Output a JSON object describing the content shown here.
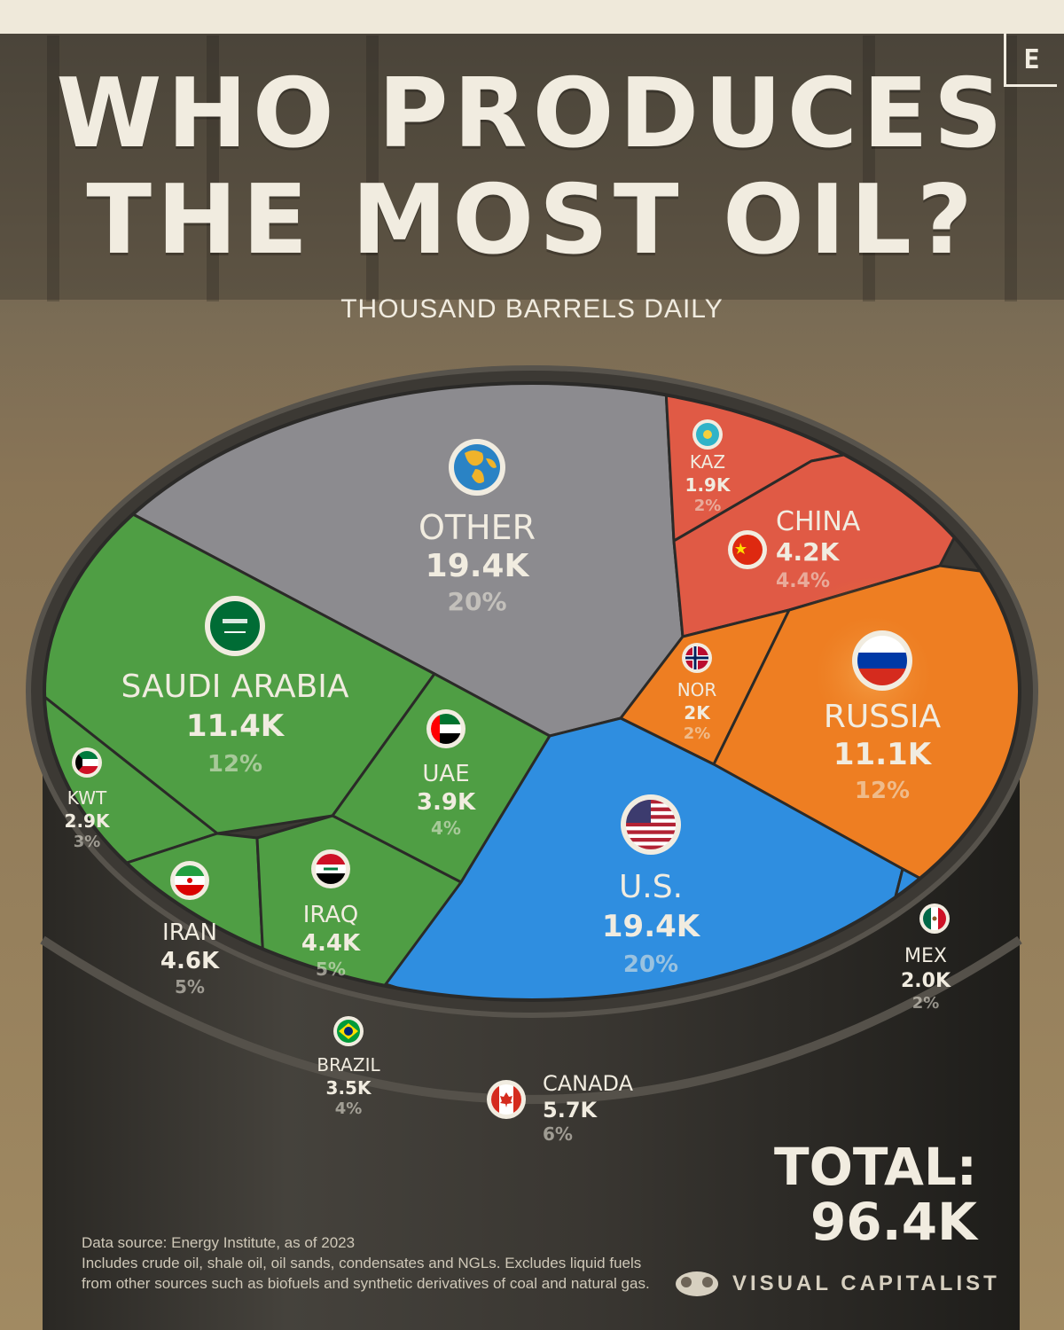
{
  "title_line1": "WHO PRODUCES",
  "title_line2": "THE MOST OIL?",
  "subtitle": "THOUSAND BARRELS DAILY",
  "logo_letter": "E",
  "total_label": "TOTAL:",
  "total_value": "96.4K",
  "source_lines": [
    "Data source: Energy Institute, as of 2023",
    "Includes crude oil, shale oil, oil sands, condensates and NGLs. Excludes liquid fuels",
    "from other sources such as biofuels and synthetic derivatives of coal and natural gas."
  ],
  "brand": "VISUAL CAPITALIST",
  "colors": {
    "other": "#8c8b8f",
    "asia": "#e05a45",
    "europe": "#ee7e22",
    "north_america": "#2f8ee0",
    "middle_east": "#4f9e44",
    "south_america": "#8e79c6"
  },
  "chart_data": {
    "type": "voronoi",
    "unit": "thousand barrels daily",
    "cells": [
      {
        "key": "other",
        "label": "OTHER",
        "value_label": "19.4K",
        "share_label": "20%",
        "value": 19.4,
        "share": 20,
        "group": "other",
        "icon": "globe-icon"
      },
      {
        "key": "kaz",
        "label": "KAZ",
        "value_label": "1.9K",
        "share_label": "2%",
        "value": 1.9,
        "share": 2,
        "group": "asia",
        "icon": "kazakhstan-flag-icon"
      },
      {
        "key": "china",
        "label": "CHINA",
        "value_label": "4.2K",
        "share_label": "4.4%",
        "value": 4.2,
        "share": 4.4,
        "group": "asia",
        "icon": "china-flag-icon"
      },
      {
        "key": "nor",
        "label": "NOR",
        "value_label": "2K",
        "share_label": "2%",
        "value": 2,
        "share": 2,
        "group": "europe",
        "icon": "norway-flag-icon"
      },
      {
        "key": "russia",
        "label": "RUSSIA",
        "value_label": "11.1K",
        "share_label": "12%",
        "value": 11.1,
        "share": 12,
        "group": "europe",
        "icon": "russia-flag-icon"
      },
      {
        "key": "saudi",
        "label": "SAUDI ARABIA",
        "value_label": "11.4K",
        "share_label": "12%",
        "value": 11.4,
        "share": 12,
        "group": "middle_east",
        "icon": "saudi-arabia-flag-icon"
      },
      {
        "key": "uae",
        "label": "UAE",
        "value_label": "3.9K",
        "share_label": "4%",
        "value": 3.9,
        "share": 4,
        "group": "middle_east",
        "icon": "uae-flag-icon"
      },
      {
        "key": "kwt",
        "label": "KWT",
        "value_label": "2.9K",
        "share_label": "3%",
        "value": 2.9,
        "share": 3,
        "group": "middle_east",
        "icon": "kuwait-flag-icon"
      },
      {
        "key": "iran",
        "label": "IRAN",
        "value_label": "4.6K",
        "share_label": "5%",
        "value": 4.6,
        "share": 5,
        "group": "middle_east",
        "icon": "iran-flag-icon"
      },
      {
        "key": "iraq",
        "label": "IRAQ",
        "value_label": "4.4K",
        "share_label": "5%",
        "value": 4.4,
        "share": 5,
        "group": "middle_east",
        "icon": "iraq-flag-icon"
      },
      {
        "key": "us",
        "label": "U.S.",
        "value_label": "19.4K",
        "share_label": "20%",
        "value": 19.4,
        "share": 20,
        "group": "north_america",
        "icon": "usa-flag-icon"
      },
      {
        "key": "mex",
        "label": "MEX",
        "value_label": "2.0K",
        "share_label": "2%",
        "value": 2.0,
        "share": 2,
        "group": "north_america",
        "icon": "mexico-flag-icon"
      },
      {
        "key": "canada",
        "label": "CANADA",
        "value_label": "5.7K",
        "share_label": "6%",
        "value": 5.7,
        "share": 6,
        "group": "north_america",
        "icon": "canada-flag-icon"
      },
      {
        "key": "brazil",
        "label": "BRAZIL",
        "value_label": "3.5K",
        "share_label": "4%",
        "value": 3.5,
        "share": 4,
        "group": "south_america",
        "icon": "brazil-flag-icon"
      }
    ]
  }
}
